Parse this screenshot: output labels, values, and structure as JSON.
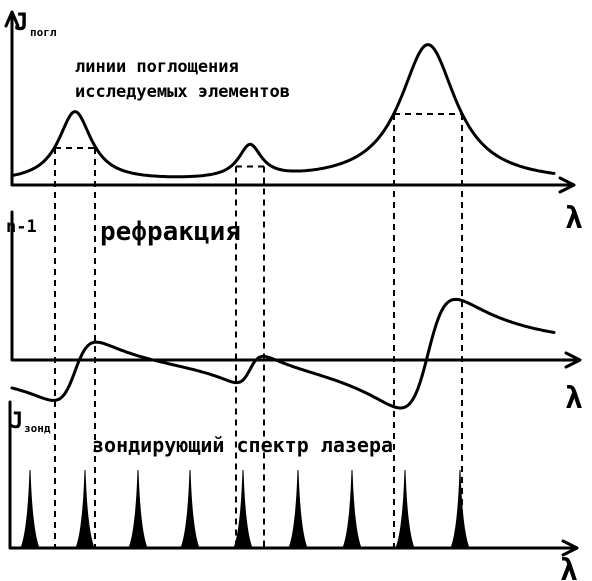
{
  "panels": [
    {
      "axis_label": "J",
      "axis_label_sub": "погл",
      "title": "линии поглощения",
      "subtitle": "исследуемых элементов",
      "x_label": "λ"
    },
    {
      "axis_label": "n-1",
      "title": "рефракция",
      "x_label": "λ"
    },
    {
      "axis_label": "J",
      "axis_label_sub": "зонд",
      "title": "зондирующий спектр лазера",
      "x_label": "λ"
    }
  ]
}
